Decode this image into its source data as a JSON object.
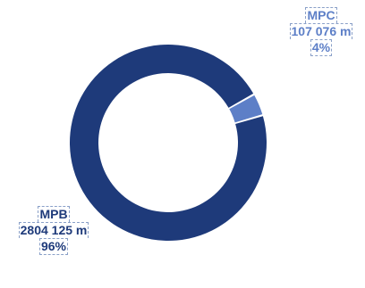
{
  "chart_data": {
    "type": "pie",
    "variant": "donut",
    "title": "",
    "slices": [
      {
        "name": "MPB",
        "value": 2804125,
        "value_label": "2804 125 m",
        "percent_label": "96%",
        "color": "#1e3a7a"
      },
      {
        "name": "MPC",
        "value": 107076,
        "value_label": "107 076 m",
        "percent_label": "4%",
        "color": "#5d7fc7"
      }
    ],
    "legend": "none"
  }
}
